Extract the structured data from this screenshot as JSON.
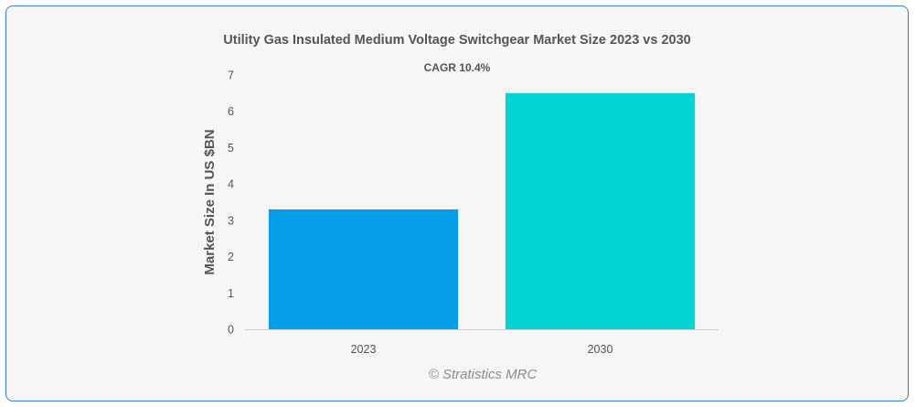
{
  "chart_data": {
    "type": "bar",
    "title": "Utility Gas Insulated Medium Voltage Switchgear Market Size 2023 vs 2030",
    "subtitle": "CAGR 10.4%",
    "xlabel": "",
    "ylabel": "Market Size In US $BN",
    "categories": [
      "2023",
      "2030"
    ],
    "values": [
      3.3,
      6.5
    ],
    "colors": [
      "#039de8",
      "#02d3d3"
    ],
    "ylim": [
      0,
      7
    ],
    "yticks": [
      "0",
      "1",
      "2",
      "3",
      "4",
      "5",
      "6",
      "7"
    ],
    "grid": false,
    "legend": "none"
  },
  "watermark": "© Stratistics MRC"
}
